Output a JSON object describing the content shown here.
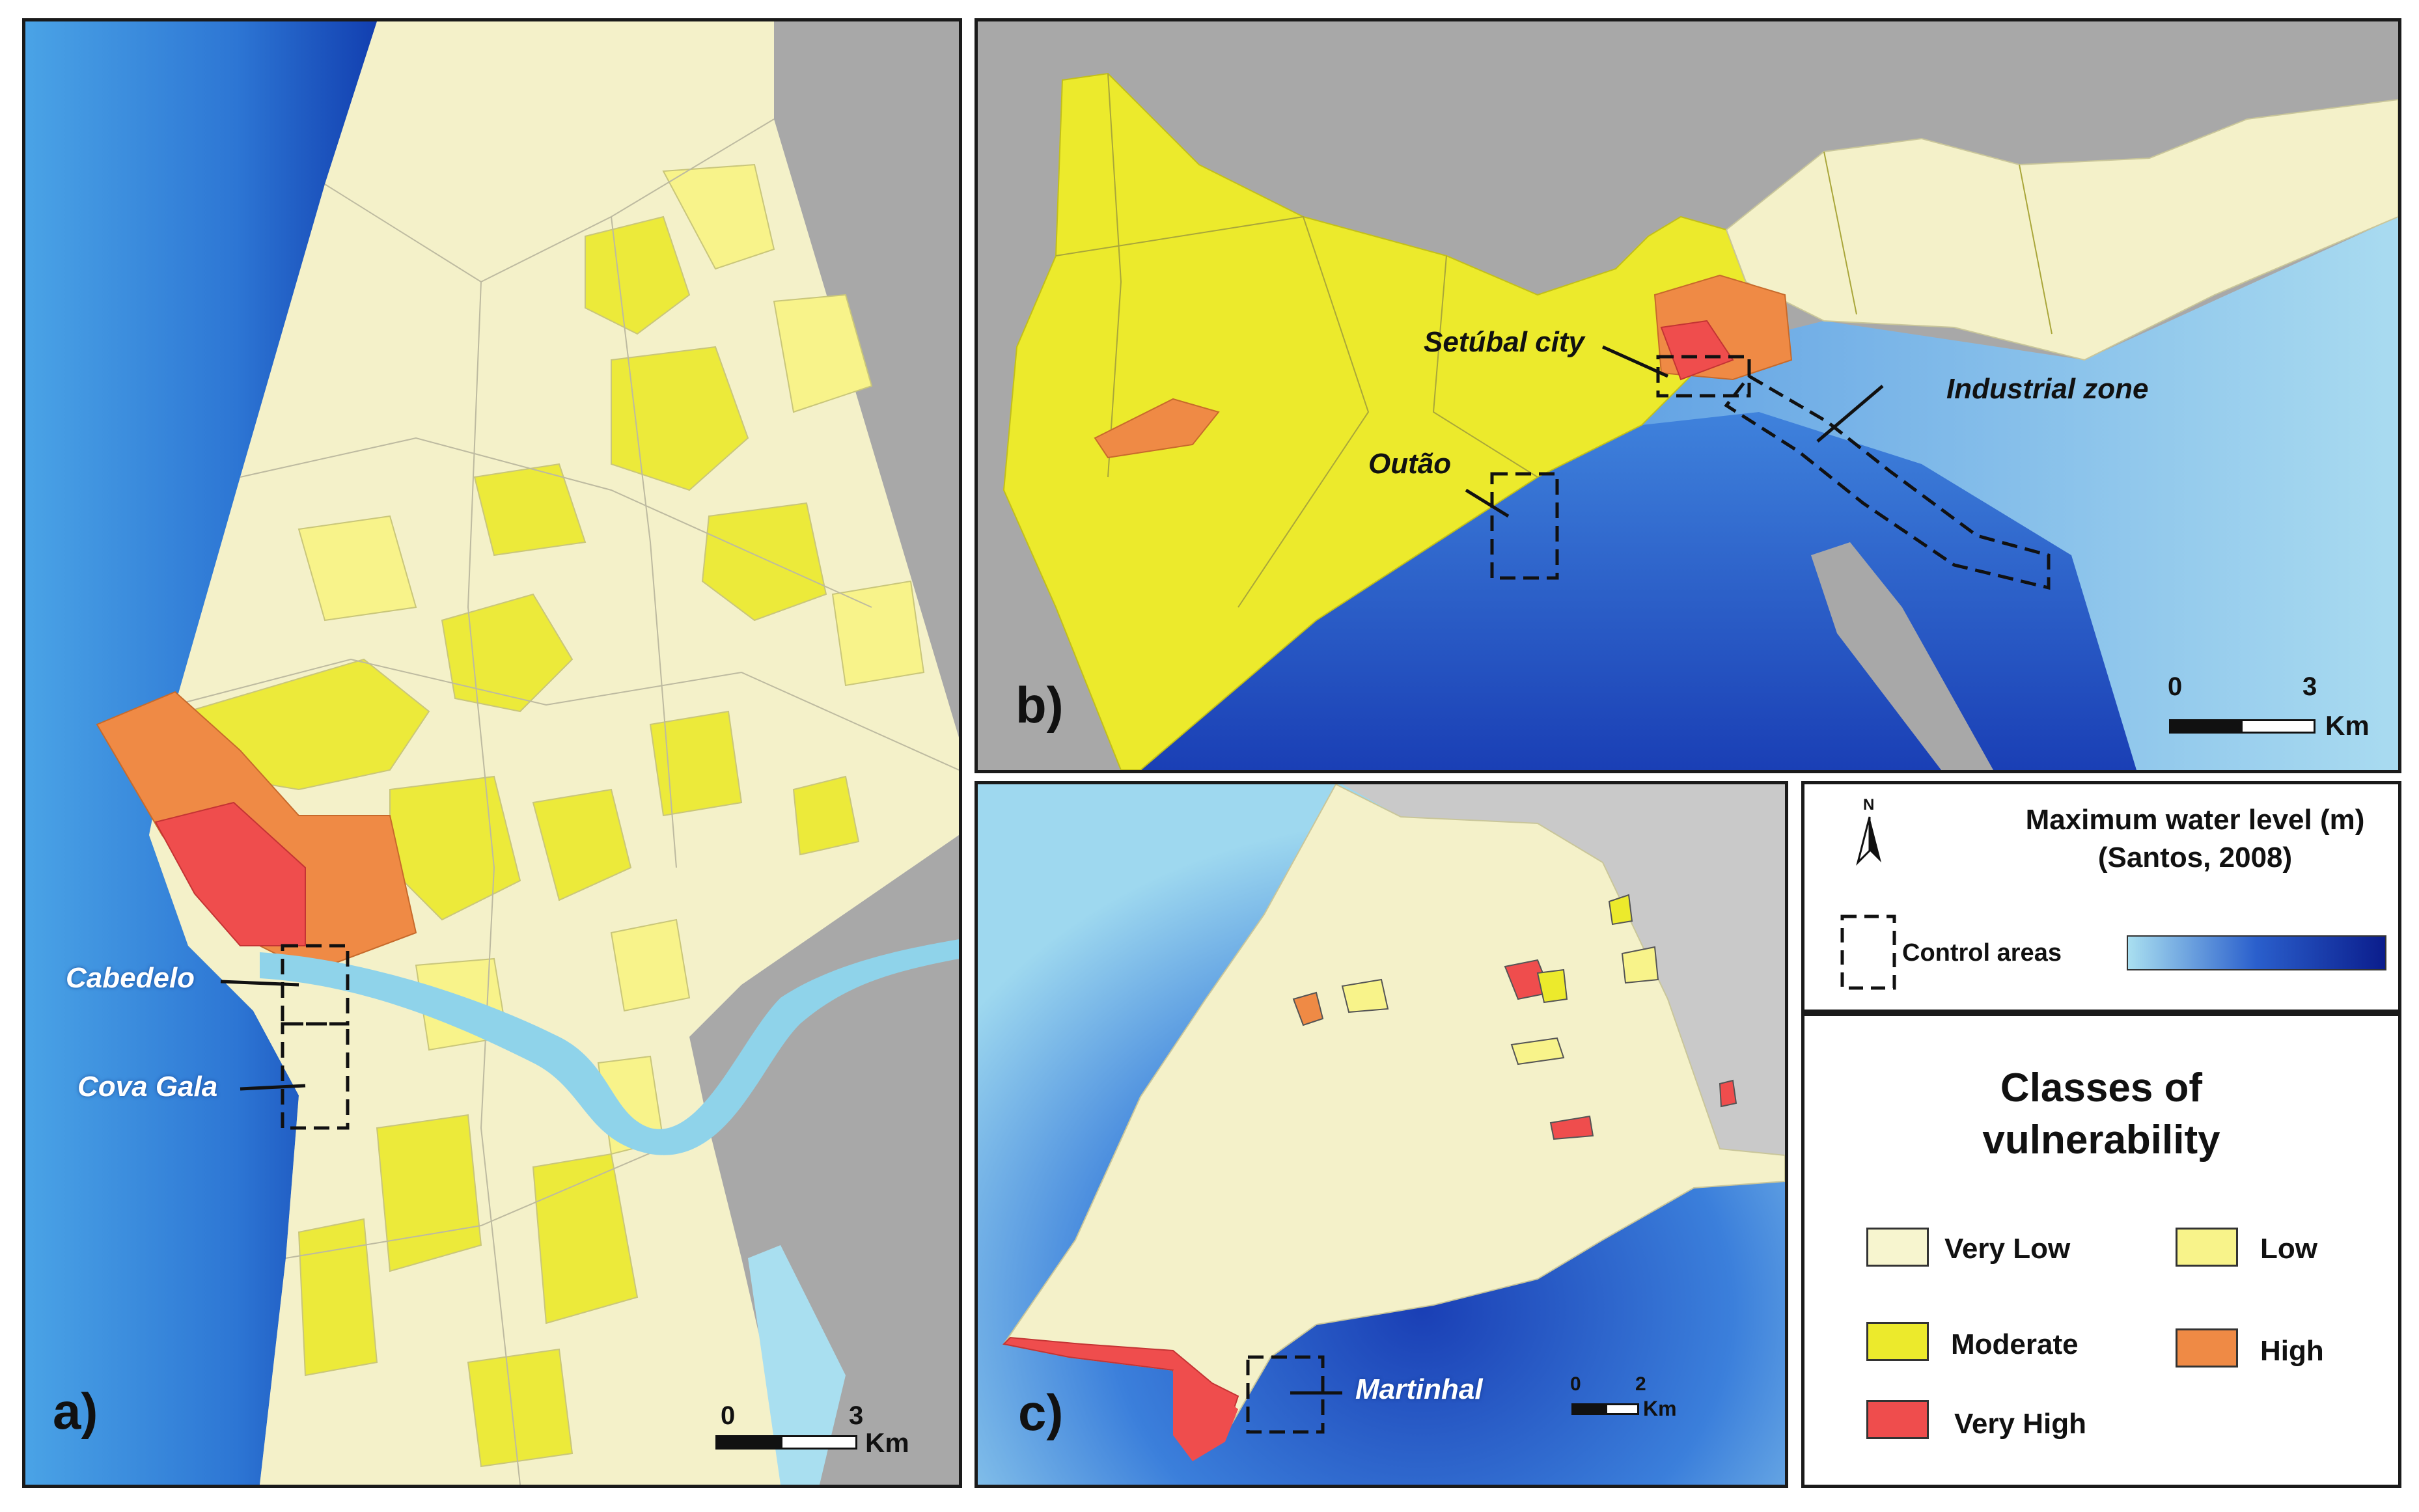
{
  "panels": {
    "a": {
      "label": "a)",
      "places": {
        "cabedelo": "Cabedelo",
        "cova_gala": "Cova Gala"
      },
      "scale": {
        "zero": "0",
        "max": "3",
        "unit": "Km"
      }
    },
    "b": {
      "label": "b)",
      "places": {
        "setubal": "Setúbal city",
        "industrial": "Industrial zone",
        "outao": "Outão"
      },
      "scale": {
        "zero": "0",
        "max": "3",
        "unit": "Km"
      }
    },
    "c": {
      "label": "c)",
      "places": {
        "martinhal": "Martinhal"
      },
      "scale": {
        "zero": "0",
        "max": "2",
        "unit": "Km"
      }
    }
  },
  "legend": {
    "north_label": "N",
    "water_title": "Maximum water level (m)",
    "water_source": "(Santos, 2008)",
    "control_areas": "Control areas",
    "classes_title_line1": "Classes of",
    "classes_title_line2": "vulnerability",
    "classes": {
      "very_low": {
        "label": "Very Low",
        "color": "#f7f5cf"
      },
      "low": {
        "label": "Low",
        "color": "#f8f38a"
      },
      "moderate": {
        "label": "Moderate",
        "color": "#ecec2c"
      },
      "high": {
        "label": "High",
        "color": "#ef8a45"
      },
      "very_high": {
        "label": "Very High",
        "color": "#ef4d4d"
      }
    },
    "water_gradient": {
      "shallow": "#a9dff0",
      "deep": "#0b1d8c"
    }
  },
  "colors": {
    "land_out": "#a8a8a8",
    "river": "#8fd3ea"
  }
}
